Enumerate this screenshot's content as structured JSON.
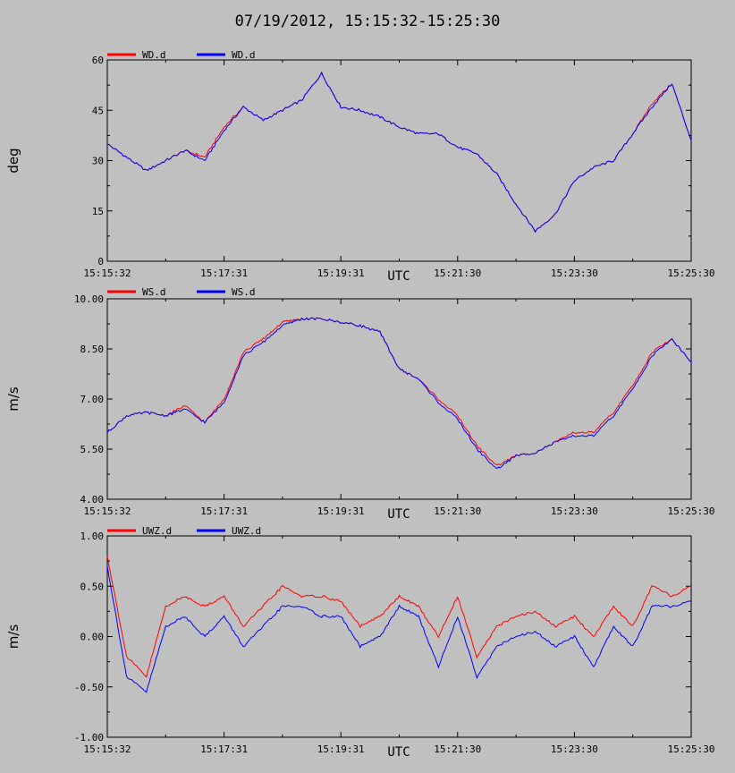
{
  "title": "07/19/2012, 15:15:32-15:25:30",
  "colors": {
    "background": "#c0c0c0",
    "red": "#ff0000",
    "blue": "#0000ff"
  },
  "chart_data": [
    {
      "type": "line",
      "ylabel": "deg",
      "xlabel": "UTC",
      "ylim": [
        0,
        60
      ],
      "yticks": [
        "0",
        "15",
        "30",
        "45",
        "60"
      ],
      "xticks": [
        "15:15:32",
        "15:17:31",
        "15:19:31",
        "15:21:30",
        "15:23:30",
        "15:25:30"
      ],
      "x_minutes": [
        0,
        0.33,
        0.67,
        1,
        1.33,
        1.67,
        2,
        2.33,
        2.67,
        3,
        3.33,
        3.67,
        4,
        4.33,
        4.67,
        5,
        5.33,
        5.67,
        6,
        6.33,
        6.67,
        7,
        7.33,
        7.67,
        8,
        8.33,
        8.67,
        9,
        9.33,
        9.67,
        10
      ],
      "series": [
        {
          "name": "WD.d",
          "color": "#ff0000",
          "values": [
            35,
            31,
            27,
            30,
            33,
            31,
            40,
            46,
            42,
            45,
            48,
            56,
            46,
            45,
            43,
            40,
            38,
            38,
            34,
            32,
            26,
            17,
            9,
            14,
            24,
            28,
            30,
            38,
            47,
            53,
            36
          ]
        },
        {
          "name": "WD.d",
          "color": "#0000ff",
          "values": [
            35,
            31,
            27,
            30,
            33,
            30,
            39,
            46,
            42,
            45,
            48,
            56,
            46,
            45,
            43,
            40,
            38,
            38,
            34,
            32,
            26,
            17,
            9,
            14,
            24,
            28,
            30,
            38,
            46,
            53,
            36
          ]
        }
      ]
    },
    {
      "type": "line",
      "ylabel": "m/s",
      "xlabel": "UTC",
      "ylim": [
        4,
        10
      ],
      "yticks": [
        "4.00",
        "5.50",
        "7.00",
        "8.50",
        "10.00"
      ],
      "xticks": [
        "15:15:32",
        "15:17:31",
        "15:19:31",
        "15:21:30",
        "15:23:30",
        "15:25:30"
      ],
      "x_minutes": [
        0,
        0.33,
        0.67,
        1,
        1.33,
        1.67,
        2,
        2.33,
        2.67,
        3,
        3.33,
        3.67,
        4,
        4.33,
        4.67,
        5,
        5.33,
        5.67,
        6,
        6.33,
        6.67,
        7,
        7.33,
        7.67,
        8,
        8.33,
        8.67,
        9,
        9.33,
        9.67,
        10
      ],
      "series": [
        {
          "name": "WS.d",
          "color": "#ff0000",
          "values": [
            6.0,
            6.5,
            6.6,
            6.5,
            6.8,
            6.3,
            7.0,
            8.4,
            8.8,
            9.3,
            9.4,
            9.4,
            9.3,
            9.2,
            9.0,
            7.9,
            7.6,
            7.0,
            6.5,
            5.6,
            5.0,
            5.3,
            5.4,
            5.7,
            6.0,
            6.0,
            6.6,
            7.4,
            8.4,
            8.8,
            8.1
          ]
        },
        {
          "name": "WS.d",
          "color": "#0000ff",
          "values": [
            6.0,
            6.5,
            6.6,
            6.5,
            6.7,
            6.3,
            6.9,
            8.3,
            8.7,
            9.2,
            9.4,
            9.4,
            9.3,
            9.2,
            9.0,
            7.9,
            7.6,
            6.9,
            6.4,
            5.5,
            4.9,
            5.3,
            5.4,
            5.7,
            5.9,
            5.9,
            6.5,
            7.3,
            8.3,
            8.8,
            8.1
          ]
        }
      ]
    },
    {
      "type": "line",
      "ylabel": "m/s",
      "xlabel": "UTC",
      "ylim": [
        -1,
        1
      ],
      "yticks": [
        "-1.00",
        "-0.50",
        "0.00",
        "0.50",
        "1.00"
      ],
      "xticks": [
        "15:15:32",
        "15:17:31",
        "15:19:31",
        "15:21:30",
        "15:23:30",
        "15:25:30"
      ],
      "x_minutes": [
        0,
        0.33,
        0.67,
        1,
        1.33,
        1.67,
        2,
        2.33,
        2.67,
        3,
        3.33,
        3.67,
        4,
        4.33,
        4.67,
        5,
        5.33,
        5.67,
        6,
        6.33,
        6.67,
        7,
        7.33,
        7.67,
        8,
        8.33,
        8.67,
        9,
        9.33,
        9.67,
        10
      ],
      "series": [
        {
          "name": "UWZ.d",
          "color": "#ff0000",
          "values": [
            0.8,
            -0.2,
            -0.4,
            0.3,
            0.4,
            0.3,
            0.4,
            0.1,
            0.3,
            0.5,
            0.4,
            0.4,
            0.35,
            0.1,
            0.2,
            0.4,
            0.3,
            0.0,
            0.4,
            -0.2,
            0.1,
            0.2,
            0.25,
            0.1,
            0.2,
            0.0,
            0.3,
            0.1,
            0.5,
            0.4,
            0.5
          ]
        },
        {
          "name": "UWZ.d",
          "color": "#0000ff",
          "values": [
            0.7,
            -0.4,
            -0.55,
            0.1,
            0.2,
            0.0,
            0.2,
            -0.1,
            0.1,
            0.3,
            0.3,
            0.2,
            0.2,
            -0.1,
            0.0,
            0.3,
            0.2,
            -0.3,
            0.2,
            -0.4,
            -0.1,
            0.0,
            0.05,
            -0.1,
            0.0,
            -0.3,
            0.1,
            -0.1,
            0.3,
            0.3,
            0.35
          ]
        }
      ]
    }
  ]
}
